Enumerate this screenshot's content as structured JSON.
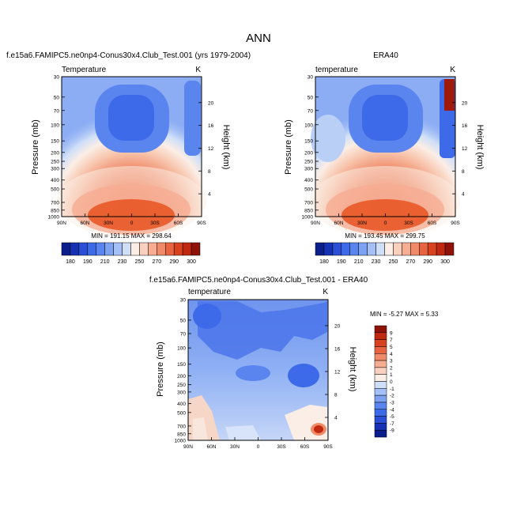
{
  "figure": {
    "title": "ANN"
  },
  "chart_data": [
    {
      "type": "heatmap",
      "title": "f.e15a6.FAMIPC5.ne0np4-Conus30x4.Club_Test.001 (yrs 1979-2004)",
      "left_label": "Temperature",
      "right_label": "K",
      "ylabel": "Pressure (mb)",
      "y2label": "Height (km)",
      "x_ticks": [
        "90N",
        "60N",
        "30N",
        "0",
        "30S",
        "60S",
        "90S"
      ],
      "y_ticks": [
        "30",
        "50",
        "70",
        "100",
        "150",
        "200",
        "250",
        "300",
        "400",
        "500",
        "700",
        "850",
        "1000"
      ],
      "y2_ticks": [
        "20",
        "16",
        "12",
        "8",
        "4"
      ],
      "stats": "MIN = 191.15   MAX = 298.64",
      "ylim": [
        1000,
        30
      ]
    },
    {
      "type": "heatmap",
      "title": "ERA40",
      "left_label": "temperature",
      "right_label": "K",
      "ylabel": "Pressure (mb)",
      "y2label": "Height (km)",
      "x_ticks": [
        "90N",
        "60N",
        "30N",
        "0",
        "30S",
        "60S",
        "90S"
      ],
      "y_ticks": [
        "30",
        "50",
        "70",
        "100",
        "150",
        "200",
        "250",
        "300",
        "400",
        "500",
        "700",
        "850",
        "1000"
      ],
      "y2_ticks": [
        "20",
        "16",
        "12",
        "8",
        "4"
      ],
      "stats": "MIN = 193.45   MAX = 299.75",
      "ylim": [
        1000,
        30
      ]
    },
    {
      "type": "heatmap",
      "title": "f.e15a6.FAMIPC5.ne0np4-Conus30x4.Club_Test.001 - ERA40",
      "left_label": "temperature",
      "right_label": "K",
      "ylabel": "Pressure (mb)",
      "y2label": "Height (km)",
      "x_ticks": [
        "90N",
        "60N",
        "30N",
        "0",
        "30S",
        "60S",
        "90S"
      ],
      "y_ticks": [
        "30",
        "50",
        "70",
        "100",
        "150",
        "200",
        "250",
        "300",
        "400",
        "500",
        "700",
        "850",
        "1000"
      ],
      "y2_ticks": [
        "20",
        "16",
        "12",
        "8",
        "4"
      ],
      "stats": "MIN =  -5.27   MAX =   5.33",
      "ylim": [
        1000,
        30
      ]
    }
  ],
  "colorbars": {
    "temperature": {
      "labels": [
        "180",
        "190",
        "210",
        "230",
        "250",
        "270",
        "290",
        "300"
      ],
      "colors": [
        "#0a1e8c",
        "#1632b4",
        "#2a4fd6",
        "#3d6ae8",
        "#5a84ee",
        "#7ea2f2",
        "#a4c0f6",
        "#cfdff8",
        "#fbeee6",
        "#f9d0bd",
        "#f6ad92",
        "#f08a68",
        "#e86440",
        "#d9421f",
        "#c0280f",
        "#8e1208"
      ]
    },
    "difference": {
      "labels": [
        "9",
        "7",
        "5",
        "4",
        "3",
        "2",
        "1",
        "0",
        "-1",
        "-2",
        "-3",
        "-4",
        "-5",
        "-7",
        "-9"
      ],
      "colors": [
        "#8e1208",
        "#c0280f",
        "#d9421f",
        "#e86440",
        "#f08a68",
        "#f6ad92",
        "#f9d0bd",
        "#fbeee6",
        "#cfdff8",
        "#a4c0f6",
        "#7ea2f2",
        "#5a84ee",
        "#3d6ae8",
        "#2a4fd6",
        "#1632b4",
        "#0a1e8c"
      ]
    }
  }
}
